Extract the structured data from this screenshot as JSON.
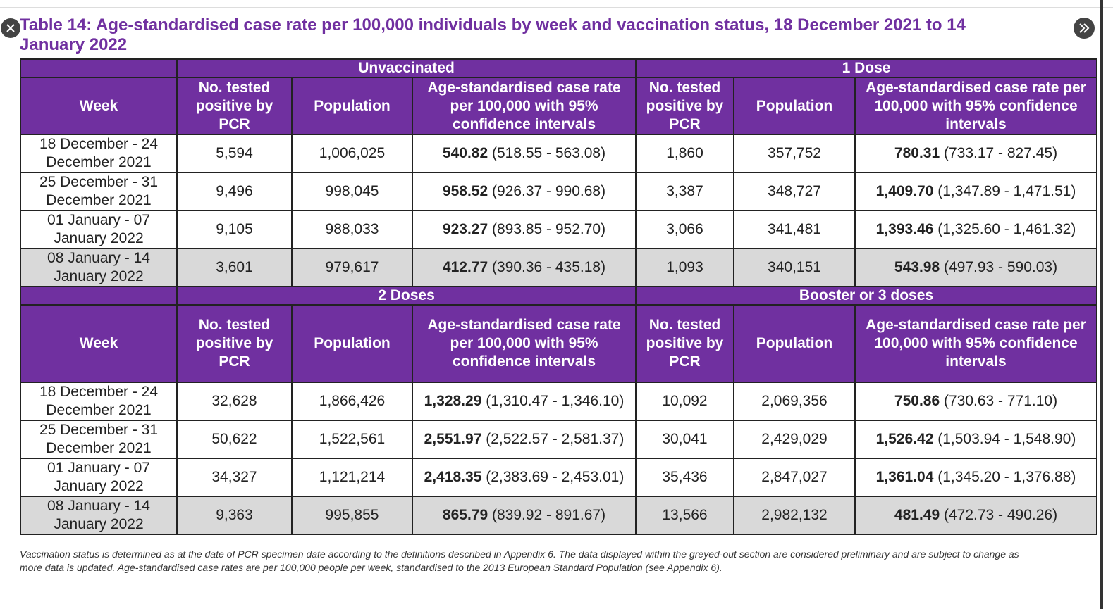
{
  "title": "Table 14: Age-standardised case rate per 100,000 individuals by week and vaccination status, 18 December 2021 to 14 January 2022",
  "sections": [
    {
      "groups": [
        "Unvaccinated",
        "1 Dose"
      ],
      "headers": [
        "Week",
        "No. tested positive by PCR",
        "Population",
        "Age-standardised case rate per 100,000 with 95% confidence intervals",
        "No. tested positive by PCR",
        "Population",
        "Age-standardised case rate per 100,000 with 95% confidence intervals"
      ],
      "rows": [
        [
          "18 December - 24 December 2021",
          "5,594",
          "1,006,025",
          {
            "rate": "540.82",
            "ci": "(518.55 - 563.08)"
          },
          "1,860",
          "357,752",
          {
            "rate": "780.31",
            "ci": "(733.17 - 827.45)"
          }
        ],
        [
          "25 December - 31 December 2021",
          "9,496",
          "998,045",
          {
            "rate": "958.52",
            "ci": "(926.37 - 990.68)"
          },
          "3,387",
          "348,727",
          {
            "rate": "1,409.70",
            "ci": "(1,347.89 - 1,471.51)"
          }
        ],
        [
          "01 January - 07 January 2022",
          "9,105",
          "988,033",
          {
            "rate": "923.27",
            "ci": "(893.85 - 952.70)"
          },
          "3,066",
          "341,481",
          {
            "rate": "1,393.46",
            "ci": "(1,325.60 - 1,461.32)"
          }
        ],
        [
          "08 January - 14 January 2022",
          "3,601",
          "979,617",
          {
            "rate": "412.77",
            "ci": "(390.36 - 435.18)"
          },
          "1,093",
          "340,151",
          {
            "rate": "543.98",
            "ci": "(497.93 - 590.03)"
          }
        ]
      ]
    },
    {
      "groups": [
        "2 Doses",
        "Booster or 3 doses"
      ],
      "headers": [
        "Week",
        "No. tested positive by PCR",
        "Population",
        "Age-standardised case rate per 100,000 with 95% confidence intervals",
        "No. tested positive by PCR",
        "Population",
        "Age-standardised case rate per 100,000 with 95% confidence intervals"
      ],
      "rows": [
        [
          "18 December - 24 December 2021",
          "32,628",
          "1,866,426",
          {
            "rate": "1,328.29",
            "ci": "(1,310.47 - 1,346.10)"
          },
          "10,092",
          "2,069,356",
          {
            "rate": "750.86",
            "ci": "(730.63 - 771.10)"
          }
        ],
        [
          "25 December - 31 December 2021",
          "50,622",
          "1,522,561",
          {
            "rate": "2,551.97",
            "ci": "(2,522.57 - 2,581.37)"
          },
          "30,041",
          "2,429,029",
          {
            "rate": "1,526.42",
            "ci": "(1,503.94 - 1,548.90)"
          }
        ],
        [
          "01 January - 07 January 2022",
          "34,327",
          "1,121,214",
          {
            "rate": "2,418.35",
            "ci": "(2,383.69 - 2,453.01)"
          },
          "35,436",
          "2,847,027",
          {
            "rate": "1,361.04",
            "ci": "(1,345.20 - 1,376.88)"
          }
        ],
        [
          "08 January - 14 January 2022",
          "9,363",
          "995,855",
          {
            "rate": "865.79",
            "ci": "(839.92 - 891.67)"
          },
          "13,566",
          "2,982,132",
          {
            "rate": "481.49",
            "ci": "(472.73 - 490.26)"
          }
        ]
      ]
    }
  ],
  "footnote": "Vaccination status is determined as at the date of PCR specimen date according to the definitions described in Appendix 6. The data displayed within the greyed-out section are considered preliminary and are subject to change as more data is updated. Age-standardised case rates are per 100,000 people per week, standardised to the 2013 European Standard Population (see Appendix 6)."
}
